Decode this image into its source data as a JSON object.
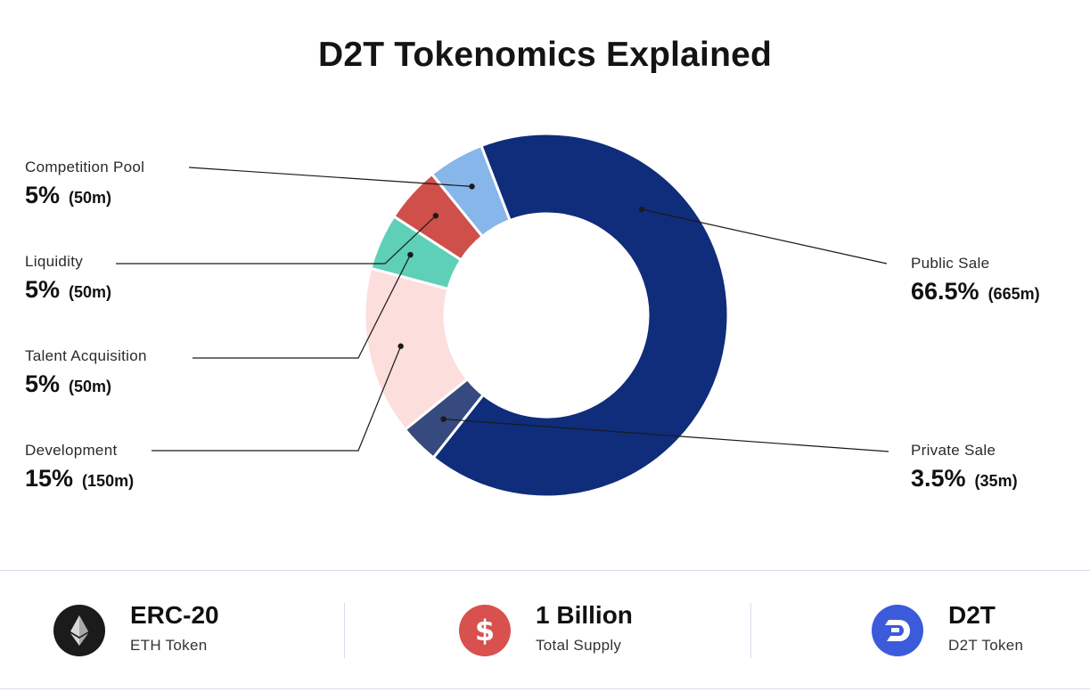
{
  "title": "D2T Tokenomics Explained",
  "chart_data": {
    "type": "pie",
    "title": "D2T Tokenomics Explained",
    "slices": [
      {
        "name": "Public Sale",
        "value": 66.5,
        "percent_label": "66.5%",
        "amount_label": "(665m)",
        "color": "#0f2d7a"
      },
      {
        "name": "Private Sale",
        "value": 3.5,
        "percent_label": "3.5%",
        "amount_label": "(35m)",
        "color": "#364a7f"
      },
      {
        "name": "Development",
        "value": 15,
        "percent_label": "15%",
        "amount_label": "(150m)",
        "color": "#fcdedd"
      },
      {
        "name": "Talent Acquisition",
        "value": 5,
        "percent_label": "5%",
        "amount_label": "(50m)",
        "color": "#5ed0b7"
      },
      {
        "name": "Liquidity",
        "value": 5,
        "percent_label": "5%",
        "amount_label": "(50m)",
        "color": "#cf4f4b"
      },
      {
        "name": "Competition Pool",
        "value": 5,
        "percent_label": "5%",
        "amount_label": "(50m)",
        "color": "#86b6ea"
      }
    ]
  },
  "labels": {
    "competition_pool": {
      "name": "Competition Pool",
      "pct": "5%",
      "amt": "(50m)"
    },
    "liquidity": {
      "name": "Liquidity",
      "pct": "5%",
      "amt": "(50m)"
    },
    "talent_acquisition": {
      "name": "Talent Acquisition",
      "pct": "5%",
      "amt": "(50m)"
    },
    "development": {
      "name": "Development",
      "pct": "15%",
      "amt": "(150m)"
    },
    "public_sale": {
      "name": "Public Sale",
      "pct": "66.5%",
      "amt": "(665m)"
    },
    "private_sale": {
      "name": "Private Sale",
      "pct": "3.5%",
      "amt": "(35m)"
    }
  },
  "footer": {
    "erc20": {
      "title": "ERC-20",
      "subtitle": "ETH Token",
      "icon": "ethereum-icon",
      "icon_color": "#1b1b1b"
    },
    "supply": {
      "title": "1 Billion",
      "subtitle": "Total Supply",
      "icon": "dollar-icon",
      "icon_color": "#d8514f"
    },
    "token": {
      "title": "D2T",
      "subtitle": "D2T Token",
      "icon": "d2t-logo-icon",
      "icon_color": "#3b5bdb"
    }
  }
}
